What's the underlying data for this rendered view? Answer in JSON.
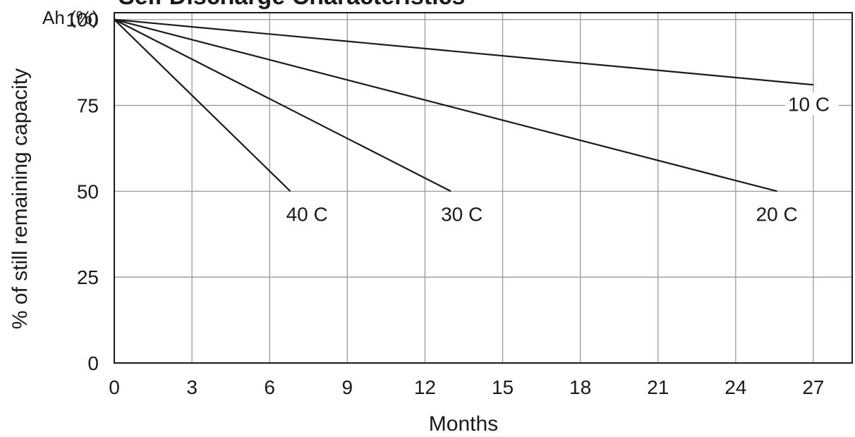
{
  "chart_data": {
    "type": "line",
    "title": "Self Discharge Characteristics",
    "xlabel": "Months",
    "ylabel": "% of still remaining capacity",
    "y_unit_label": "Ah (%)",
    "xlim": [
      0,
      28.5
    ],
    "ylim": [
      0,
      102
    ],
    "x_ticks": [
      0,
      3,
      6,
      9,
      12,
      15,
      18,
      21,
      24,
      27
    ],
    "y_ticks": [
      0,
      25,
      50,
      75,
      100
    ],
    "grid": true,
    "legend": "inline labels at line ends",
    "line_color": "#1a1a1a",
    "series": [
      {
        "name": "10 C",
        "x": [
          0,
          27
        ],
        "y": [
          100,
          81
        ]
      },
      {
        "name": "20 C",
        "x": [
          0,
          25.6
        ],
        "y": [
          100,
          50
        ]
      },
      {
        "name": "30 C",
        "x": [
          0,
          13
        ],
        "y": [
          100,
          50
        ]
      },
      {
        "name": "40 C",
        "x": [
          0,
          6.8
        ],
        "y": [
          100,
          50
        ]
      }
    ]
  }
}
